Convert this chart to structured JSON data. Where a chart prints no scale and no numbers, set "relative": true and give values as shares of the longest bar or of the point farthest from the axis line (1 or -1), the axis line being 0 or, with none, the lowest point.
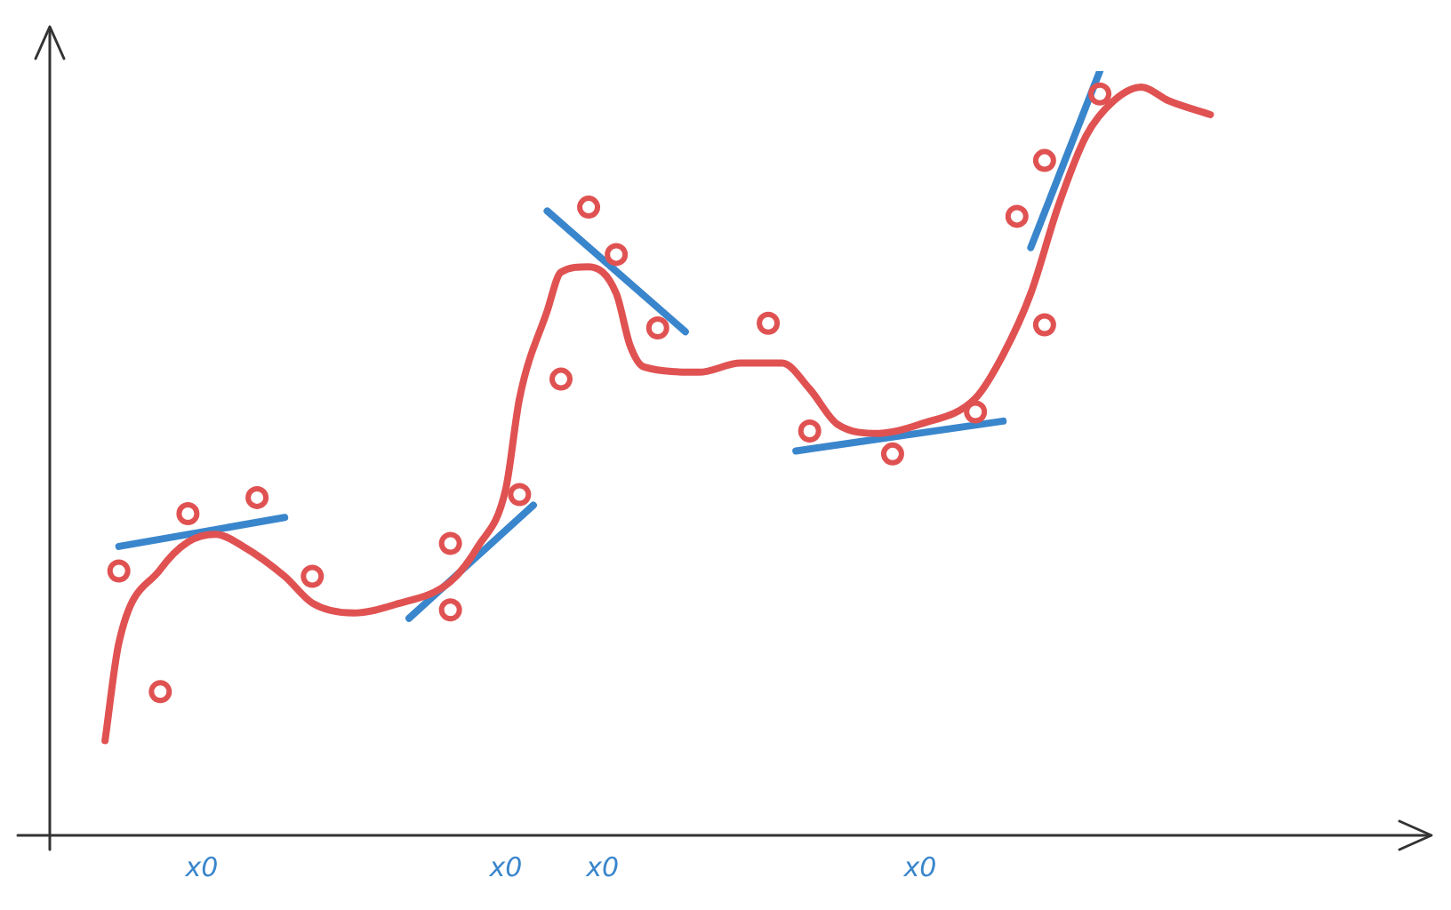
{
  "chart_data": {
    "type": "scatter",
    "relative": true,
    "categories": [
      null,
      null,
      null,
      null,
      null,
      null,
      null,
      null,
      null,
      null,
      null,
      "x0",
      null,
      null,
      null,
      null,
      null,
      null,
      null,
      null,
      null,
      null,
      null,
      null,
      null,
      null,
      null,
      null,
      null,
      null,
      null,
      null,
      null,
      "x0",
      null,
      null,
      null,
      null,
      null,
      null,
      "x0",
      null,
      null,
      null,
      null,
      null,
      null,
      null,
      null,
      null,
      null,
      null,
      null,
      null,
      null,
      null,
      null,
      null,
      null,
      null,
      null,
      null,
      null,
      "x0",
      null,
      null,
      null,
      null,
      null,
      null,
      null,
      null,
      null,
      null,
      null,
      null,
      null,
      null,
      null,
      null,
      null,
      null,
      null,
      null,
      null,
      null,
      null,
      null,
      null,
      null,
      null,
      null,
      null,
      null,
      null,
      null,
      null,
      null,
      null,
      null,
      null
    ],
    "grid": false,
    "legend": false,
    "tick_labels": "x",
    "series": [
      {
        "type": "line",
        "color": "#e05252",
        "marker": "none",
        "values": [
          null,
          null,
          null,
          null,
          0.124,
          0.252,
          null,
          null,
          0.348,
          null,
          0.384,
          null,
          0.394,
          null,
          0.378,
          null,
          null,
          0.339,
          null,
          0.304,
          null,
          null,
          0.291,
          null,
          null,
          0.302,
          null,
          null,
          null,
          0.332,
          null,
          0.378,
          null,
          0.453,
          0.572,
          null,
          0.686,
          0.737,
          null,
          0.744,
          null,
          0.709,
          0.641,
          0.613,
          null,
          null,
          null,
          0.606,
          null,
          null,
          0.618,
          null,
          null,
          0.618,
          null,
          0.584,
          null,
          0.538,
          null,
          null,
          0.526,
          null,
          null,
          0.538,
          null,
          null,
          null,
          0.572,
          null,
          0.629,
          null,
          0.709,
          null,
          0.824,
          null,
          0.915,
          null,
          0.961,
          null,
          0.979,
          null,
          0.961,
          null,
          null,
          0.943,
          null,
          null,
          null,
          null,
          null,
          null,
          null,
          null,
          null,
          null,
          null,
          null,
          null,
          null,
          null,
          null
        ]
      },
      {
        "color": "#e05252",
        "marker": "circle",
        "values": [
          null,
          null,
          null,
          null,
          null,
          0.346,
          null,
          null,
          0.188,
          null,
          0.421,
          null,
          null,
          null,
          null,
          0.442,
          null,
          null,
          null,
          0.339,
          null,
          null,
          null,
          null,
          null,
          null,
          null,
          null,
          null,
          0.382,
          null,
          null,
          null,
          null,
          0.446,
          null,
          null,
          0.597,
          null,
          0.822,
          null,
          0.76,
          null,
          null,
          0.664,
          null,
          null,
          null,
          null,
          null,
          null,
          null,
          0.67,
          null,
          null,
          0.529,
          null,
          null,
          null,
          null,
          null,
          0.499,
          null,
          null,
          null,
          null,
          null,
          0.554,
          null,
          null,
          0.81,
          null,
          0.668,
          null,
          null,
          null,
          0.97,
          null,
          null,
          null,
          null,
          null,
          null,
          null,
          null,
          null,
          null,
          null,
          null,
          null,
          null,
          null,
          null,
          null,
          null,
          null,
          null,
          null,
          null,
          null,
          null
        ]
      },
      {
        "color": "#e05252",
        "marker": "circle",
        "values": [
          null,
          null,
          null,
          null,
          null,
          null,
          null,
          null,
          null,
          null,
          null,
          null,
          null,
          null,
          null,
          null,
          null,
          null,
          null,
          null,
          null,
          null,
          null,
          null,
          null,
          null,
          null,
          null,
          null,
          0.295,
          null,
          null,
          null,
          null,
          null,
          null,
          null,
          null,
          null,
          null,
          null,
          null,
          null,
          null,
          null,
          null,
          null,
          null,
          null,
          null,
          null,
          null,
          null,
          null,
          null,
          null,
          null,
          null,
          null,
          null,
          null,
          null,
          null,
          null,
          null,
          null,
          null,
          null,
          null,
          null,
          null,
          null,
          0.883,
          null,
          null,
          null,
          null,
          null,
          null,
          null,
          null,
          null,
          null,
          null,
          null,
          null,
          null,
          null,
          null,
          null,
          null,
          null,
          null,
          null,
          null,
          null,
          null,
          null,
          null,
          null,
          null
        ]
      },
      {
        "type": "line",
        "color": "#3a86cc",
        "marker": "none",
        "values": [
          null,
          null,
          null,
          null,
          null,
          0.378,
          null,
          null,
          null,
          null,
          null,
          null,
          null,
          null,
          null,
          null,
          null,
          0.416,
          null,
          null,
          null,
          null,
          null,
          null,
          null,
          null,
          null,
          null,
          null,
          null,
          null,
          null,
          null,
          null,
          null,
          null,
          null,
          null,
          null,
          null,
          null,
          null,
          null,
          null,
          null,
          null,
          null,
          null,
          null,
          null,
          null,
          null,
          null,
          null,
          null,
          null,
          null,
          null,
          null,
          null,
          null,
          null,
          null,
          null,
          null,
          null,
          null,
          null,
          null,
          null,
          null,
          null,
          null,
          null,
          null,
          null,
          null,
          null,
          null,
          null,
          null,
          null,
          null,
          null,
          null,
          null,
          null,
          null,
          null,
          null,
          null,
          null,
          null,
          null,
          null,
          null,
          null,
          null,
          null,
          null,
          null
        ]
      },
      {
        "type": "line",
        "color": "#3a86cc",
        "marker": "none",
        "values": [
          null,
          null,
          null,
          null,
          null,
          null,
          null,
          null,
          null,
          null,
          null,
          null,
          null,
          null,
          null,
          null,
          null,
          null,
          null,
          null,
          null,
          null,
          null,
          null,
          null,
          null,
          0.284,
          null,
          null,
          null,
          null,
          null,
          null,
          null,
          null,
          0.432,
          null,
          null,
          null,
          null,
          null,
          null,
          null,
          null,
          null,
          null,
          null,
          null,
          null,
          null,
          null,
          null,
          null,
          null,
          null,
          null,
          null,
          null,
          null,
          null,
          null,
          null,
          null,
          null,
          null,
          null,
          null,
          null,
          null,
          null,
          null,
          null,
          null,
          null,
          null,
          null,
          null,
          null,
          null,
          null,
          null,
          null,
          null,
          null,
          null,
          null,
          null,
          null,
          null,
          null,
          null,
          null,
          null,
          null,
          null,
          null,
          null,
          null,
          null,
          null,
          null
        ]
      },
      {
        "type": "line",
        "color": "#3a86cc",
        "marker": "none",
        "values": [
          null,
          null,
          null,
          null,
          null,
          null,
          null,
          null,
          null,
          null,
          null,
          null,
          null,
          null,
          null,
          null,
          null,
          null,
          null,
          null,
          null,
          null,
          null,
          null,
          null,
          null,
          null,
          null,
          null,
          null,
          null,
          null,
          null,
          null,
          null,
          null,
          0.817,
          null,
          null,
          null,
          null,
          null,
          null,
          null,
          null,
          null,
          0.659,
          null,
          null,
          null,
          null,
          null,
          null,
          null,
          null,
          null,
          null,
          null,
          null,
          null,
          null,
          null,
          null,
          null,
          null,
          null,
          null,
          null,
          null,
          null,
          null,
          null,
          null,
          null,
          null,
          null,
          null,
          null,
          null,
          null,
          null,
          null,
          null,
          null,
          null,
          null,
          null,
          null,
          null,
          null,
          null,
          null,
          null,
          null,
          null,
          null,
          null,
          null,
          null,
          null,
          null
        ]
      },
      {
        "type": "line",
        "color": "#3a86cc",
        "marker": "none",
        "values": [
          null,
          null,
          null,
          null,
          null,
          null,
          null,
          null,
          null,
          null,
          null,
          null,
          null,
          null,
          null,
          null,
          null,
          null,
          null,
          null,
          null,
          null,
          null,
          null,
          null,
          null,
          null,
          null,
          null,
          null,
          null,
          null,
          null,
          null,
          null,
          null,
          null,
          null,
          null,
          null,
          null,
          null,
          null,
          null,
          null,
          null,
          null,
          null,
          null,
          null,
          null,
          null,
          null,
          null,
          0.503,
          null,
          null,
          null,
          null,
          null,
          null,
          null,
          null,
          null,
          null,
          null,
          null,
          null,
          null,
          0.542,
          null,
          null,
          null,
          null,
          null,
          null,
          null,
          null,
          null,
          null,
          null,
          null,
          null,
          null,
          null,
          null,
          null,
          null,
          null,
          null,
          null,
          null,
          null,
          null,
          null,
          null,
          null,
          null,
          null,
          null,
          null
        ]
      },
      {
        "type": "line",
        "color": "#3a86cc",
        "marker": "none",
        "values": [
          null,
          null,
          null,
          null,
          null,
          null,
          null,
          null,
          null,
          null,
          null,
          null,
          null,
          null,
          null,
          null,
          null,
          null,
          null,
          null,
          null,
          null,
          null,
          null,
          null,
          null,
          null,
          null,
          null,
          null,
          null,
          null,
          null,
          null,
          null,
          null,
          null,
          null,
          null,
          null,
          null,
          null,
          null,
          null,
          null,
          null,
          null,
          null,
          null,
          null,
          null,
          null,
          null,
          null,
          null,
          null,
          null,
          null,
          null,
          null,
          null,
          null,
          null,
          null,
          null,
          null,
          null,
          null,
          null,
          null,
          null,
          0.769,
          null,
          null,
          null,
          null,
          1.0,
          null,
          null,
          null,
          null,
          null,
          null,
          null,
          null,
          null,
          null,
          null,
          null,
          null,
          null,
          null,
          null,
          null,
          null,
          null,
          null,
          null,
          null,
          null,
          null
        ]
      }
    ]
  }
}
